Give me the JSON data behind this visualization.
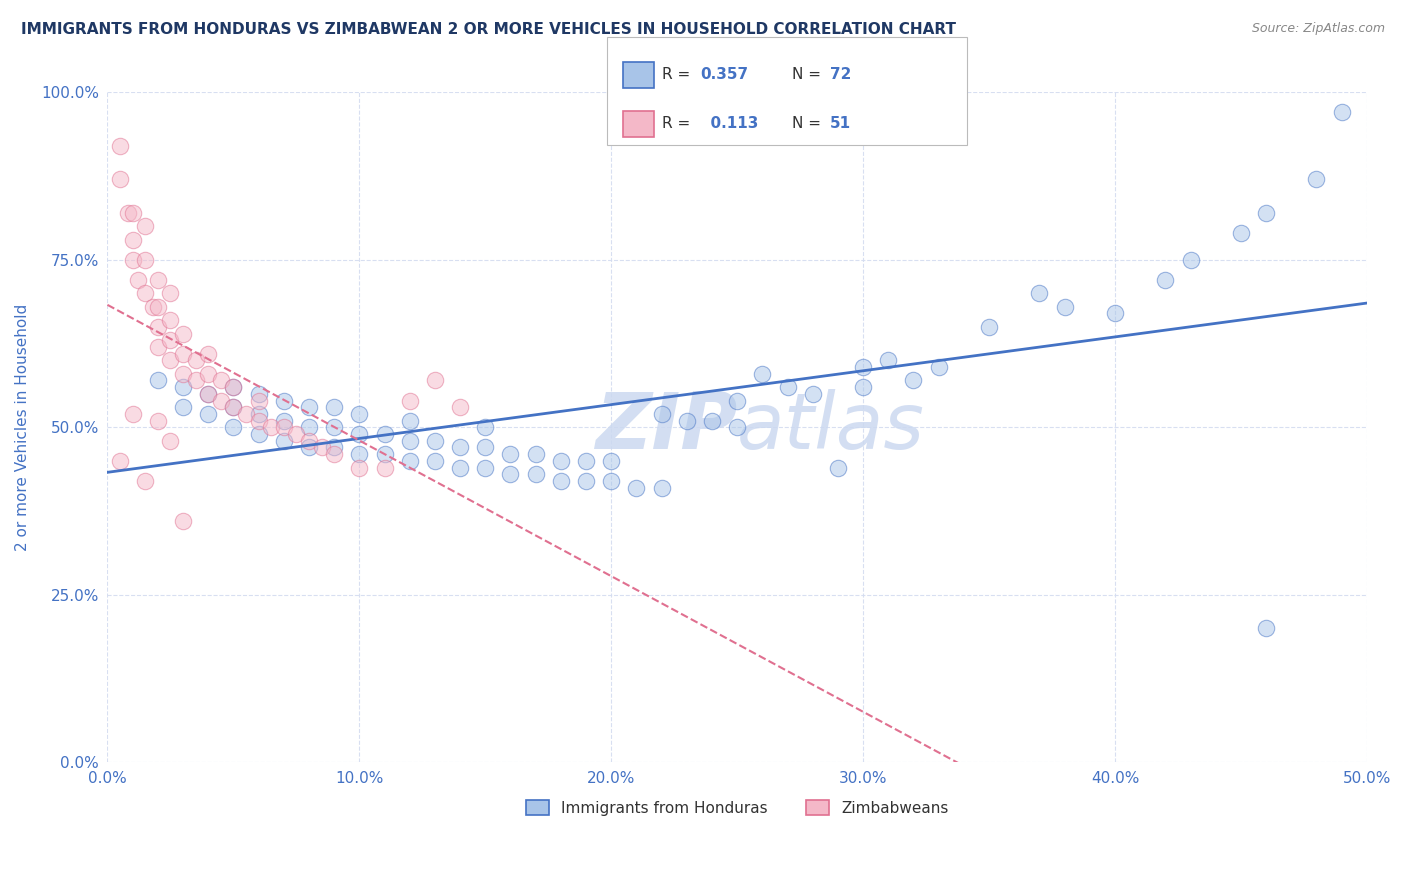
{
  "title": "IMMIGRANTS FROM HONDURAS VS ZIMBABWEAN 2 OR MORE VEHICLES IN HOUSEHOLD CORRELATION CHART",
  "source": "Source: ZipAtlas.com",
  "ylabel": "2 or more Vehicles in Household",
  "x_min": 0.0,
  "x_max": 0.5,
  "y_min": 0.0,
  "y_max": 1.0,
  "xticks": [
    0.0,
    0.1,
    0.2,
    0.3,
    0.4,
    0.5
  ],
  "xticklabels": [
    "0.0%",
    "10.0%",
    "20.0%",
    "30.0%",
    "40.0%",
    "50.0%"
  ],
  "yticks": [
    0.0,
    0.25,
    0.5,
    0.75,
    1.0
  ],
  "yticklabels": [
    "0.0%",
    "25.0%",
    "50.0%",
    "75.0%",
    "100.0%"
  ],
  "legend_labels": [
    "Immigrants from Honduras",
    "Zimbabweans"
  ],
  "R_blue": "0.357",
  "N_blue": "72",
  "R_pink": "0.113",
  "N_pink": "51",
  "blue_scatter_x": [
    0.02,
    0.03,
    0.03,
    0.04,
    0.04,
    0.05,
    0.05,
    0.05,
    0.06,
    0.06,
    0.06,
    0.07,
    0.07,
    0.07,
    0.08,
    0.08,
    0.08,
    0.09,
    0.09,
    0.09,
    0.1,
    0.1,
    0.1,
    0.11,
    0.11,
    0.12,
    0.12,
    0.12,
    0.13,
    0.13,
    0.14,
    0.14,
    0.15,
    0.15,
    0.15,
    0.16,
    0.16,
    0.17,
    0.17,
    0.18,
    0.18,
    0.19,
    0.19,
    0.2,
    0.2,
    0.21,
    0.22,
    0.22,
    0.23,
    0.24,
    0.25,
    0.25,
    0.26,
    0.27,
    0.28,
    0.29,
    0.3,
    0.3,
    0.31,
    0.32,
    0.33,
    0.35,
    0.37,
    0.38,
    0.4,
    0.42,
    0.43,
    0.45,
    0.46,
    0.48,
    0.49,
    0.46
  ],
  "blue_scatter_y": [
    0.57,
    0.53,
    0.56,
    0.52,
    0.55,
    0.5,
    0.53,
    0.56,
    0.49,
    0.52,
    0.55,
    0.48,
    0.51,
    0.54,
    0.47,
    0.5,
    0.53,
    0.47,
    0.5,
    0.53,
    0.46,
    0.49,
    0.52,
    0.46,
    0.49,
    0.45,
    0.48,
    0.51,
    0.45,
    0.48,
    0.44,
    0.47,
    0.44,
    0.47,
    0.5,
    0.43,
    0.46,
    0.43,
    0.46,
    0.42,
    0.45,
    0.42,
    0.45,
    0.42,
    0.45,
    0.41,
    0.41,
    0.52,
    0.51,
    0.51,
    0.5,
    0.54,
    0.58,
    0.56,
    0.55,
    0.44,
    0.56,
    0.59,
    0.6,
    0.57,
    0.59,
    0.65,
    0.7,
    0.68,
    0.67,
    0.72,
    0.75,
    0.79,
    0.82,
    0.87,
    0.97,
    0.2
  ],
  "pink_scatter_x": [
    0.005,
    0.005,
    0.008,
    0.01,
    0.01,
    0.01,
    0.012,
    0.015,
    0.015,
    0.015,
    0.018,
    0.02,
    0.02,
    0.02,
    0.02,
    0.025,
    0.025,
    0.025,
    0.025,
    0.03,
    0.03,
    0.03,
    0.035,
    0.035,
    0.04,
    0.04,
    0.04,
    0.045,
    0.045,
    0.05,
    0.05,
    0.055,
    0.06,
    0.06,
    0.065,
    0.07,
    0.075,
    0.08,
    0.085,
    0.09,
    0.1,
    0.11,
    0.12,
    0.13,
    0.14,
    0.005,
    0.01,
    0.015,
    0.02,
    0.025,
    0.03
  ],
  "pink_scatter_y": [
    0.92,
    0.87,
    0.82,
    0.78,
    0.82,
    0.75,
    0.72,
    0.75,
    0.7,
    0.8,
    0.68,
    0.65,
    0.68,
    0.72,
    0.62,
    0.6,
    0.63,
    0.66,
    0.7,
    0.58,
    0.61,
    0.64,
    0.57,
    0.6,
    0.55,
    0.58,
    0.61,
    0.54,
    0.57,
    0.53,
    0.56,
    0.52,
    0.51,
    0.54,
    0.5,
    0.5,
    0.49,
    0.48,
    0.47,
    0.46,
    0.44,
    0.44,
    0.54,
    0.57,
    0.53,
    0.45,
    0.52,
    0.42,
    0.51,
    0.48,
    0.36
  ],
  "blue_line_color": "#4472c4",
  "pink_line_color": "#e07090",
  "blue_dot_color": "#a8c4e8",
  "pink_dot_color": "#f4b8c8",
  "title_color": "#1f3864",
  "tick_color": "#4472c4",
  "grid_color": "#d4dcf0",
  "watermark_color": "#ccd9f0"
}
